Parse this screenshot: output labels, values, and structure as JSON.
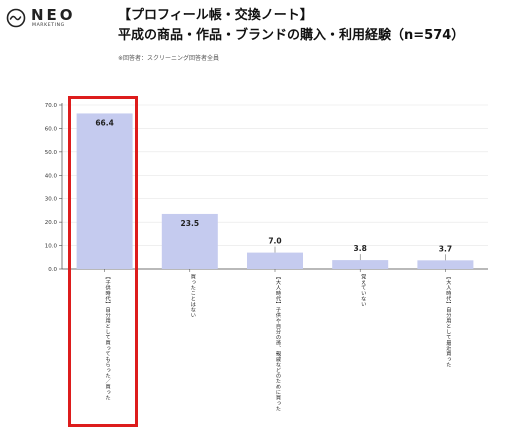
{
  "brand": {
    "name": "NEO",
    "sub": "MARKETING",
    "logo_icon": "wave-circle-icon"
  },
  "header": {
    "title_line1": "【プロフィール帳・交換ノート】",
    "title_line2": "平成の商品・作品・ブランドの購入・利用経験（n=574）",
    "note": "※回答者：スクリーニング回答者全員"
  },
  "colors": {
    "bar": "#c5cbef",
    "highlight": "#dd1c1c",
    "axis": "#444444",
    "grid": "#e6e6e6"
  },
  "chart_data": {
    "type": "bar",
    "title": "平成の商品・作品・ブランドの購入・利用経験（n=574）",
    "categories": [
      "【子供時代】自分用として買ってもらった／買った",
      "買ったことはない",
      "【大人時代】子供や自分の孫、親戚などのために買った",
      "覚えていない",
      "【大人時代】自分用として最近買った"
    ],
    "values": [
      66.4,
      23.5,
      7.0,
      3.8,
      3.7
    ],
    "value_labels": [
      "66.4",
      "23.5",
      "7.0",
      "3.8",
      "3.7"
    ],
    "y_ticks": [
      "0.0",
      "10.0",
      "20.0",
      "30.0",
      "40.0",
      "50.0",
      "60.0",
      "70.0"
    ],
    "ylim": [
      0,
      70
    ],
    "highlighted_category_index": 0
  }
}
